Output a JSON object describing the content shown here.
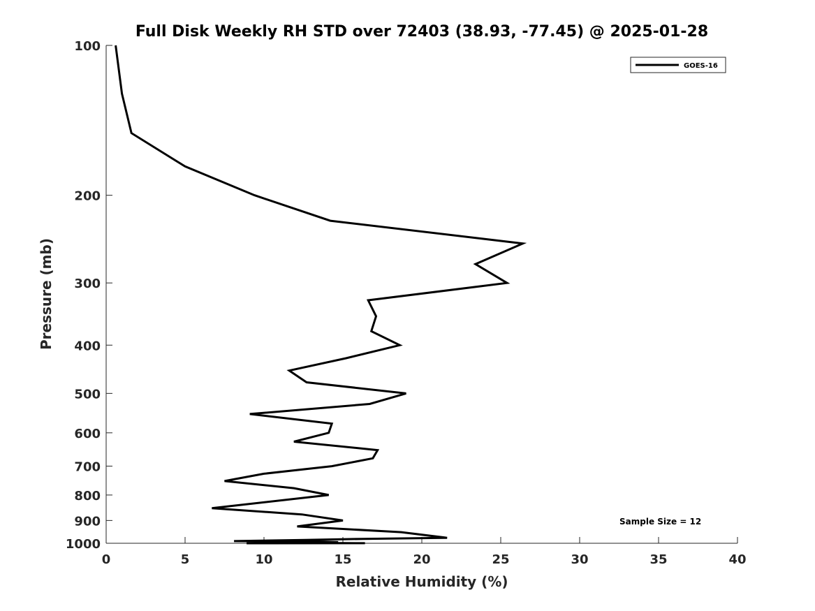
{
  "chart_data": {
    "type": "line",
    "title": "Full Disk Weekly RH STD over 72403 (38.93, -77.45) @ 2025-01-28",
    "xlabel": "Relative Humidity (%)",
    "ylabel": "Pressure (mb)",
    "xlim": [
      0,
      40
    ],
    "ylim": [
      100,
      1000
    ],
    "y_scale": "log",
    "y_reversed": true,
    "x_ticks": [
      "0",
      "5",
      "10",
      "15",
      "20",
      "25",
      "30",
      "35",
      "40"
    ],
    "y_ticks": [
      "100",
      "200",
      "300",
      "400",
      "500",
      "600",
      "700",
      "800",
      "900",
      "1000"
    ],
    "grid": false,
    "legend_position": "top-right",
    "annotation": "Sample Size = 12",
    "series": [
      {
        "name": "GOES-16",
        "color": "#000000",
        "points": [
          [
            0.6,
            100
          ],
          [
            1.0,
            125
          ],
          [
            1.6,
            150
          ],
          [
            5.0,
            175
          ],
          [
            9.4,
            200
          ],
          [
            14.2,
            225
          ],
          [
            26.4,
            250
          ],
          [
            23.4,
            275
          ],
          [
            25.4,
            300
          ],
          [
            16.6,
            325
          ],
          [
            17.1,
            350
          ],
          [
            16.8,
            375
          ],
          [
            18.6,
            400
          ],
          [
            15.2,
            425
          ],
          [
            11.6,
            450
          ],
          [
            12.7,
            475
          ],
          [
            19.0,
            500
          ],
          [
            16.7,
            525
          ],
          [
            9.1,
            550
          ],
          [
            14.3,
            575
          ],
          [
            14.1,
            600
          ],
          [
            11.9,
            625
          ],
          [
            17.2,
            650
          ],
          [
            16.9,
            675
          ],
          [
            14.3,
            700
          ],
          [
            10.0,
            725
          ],
          [
            7.5,
            750
          ],
          [
            11.9,
            775
          ],
          [
            14.1,
            800
          ],
          [
            6.7,
            850
          ],
          [
            12.4,
            875
          ],
          [
            15.0,
            900
          ],
          [
            12.1,
            925
          ],
          [
            18.7,
            950
          ],
          [
            21.6,
            975
          ],
          [
            16.3,
            980
          ],
          [
            12.6,
            985
          ],
          [
            8.1,
            990
          ],
          [
            13.6,
            993
          ],
          [
            14.7,
            995
          ],
          [
            13.3,
            997
          ],
          [
            13.0,
            998
          ],
          [
            9.6,
            999
          ],
          [
            15.0,
            999.5
          ],
          [
            16.4,
            999.8
          ],
          [
            10.0,
            999.9
          ],
          [
            8.9,
            1000
          ]
        ]
      }
    ]
  }
}
